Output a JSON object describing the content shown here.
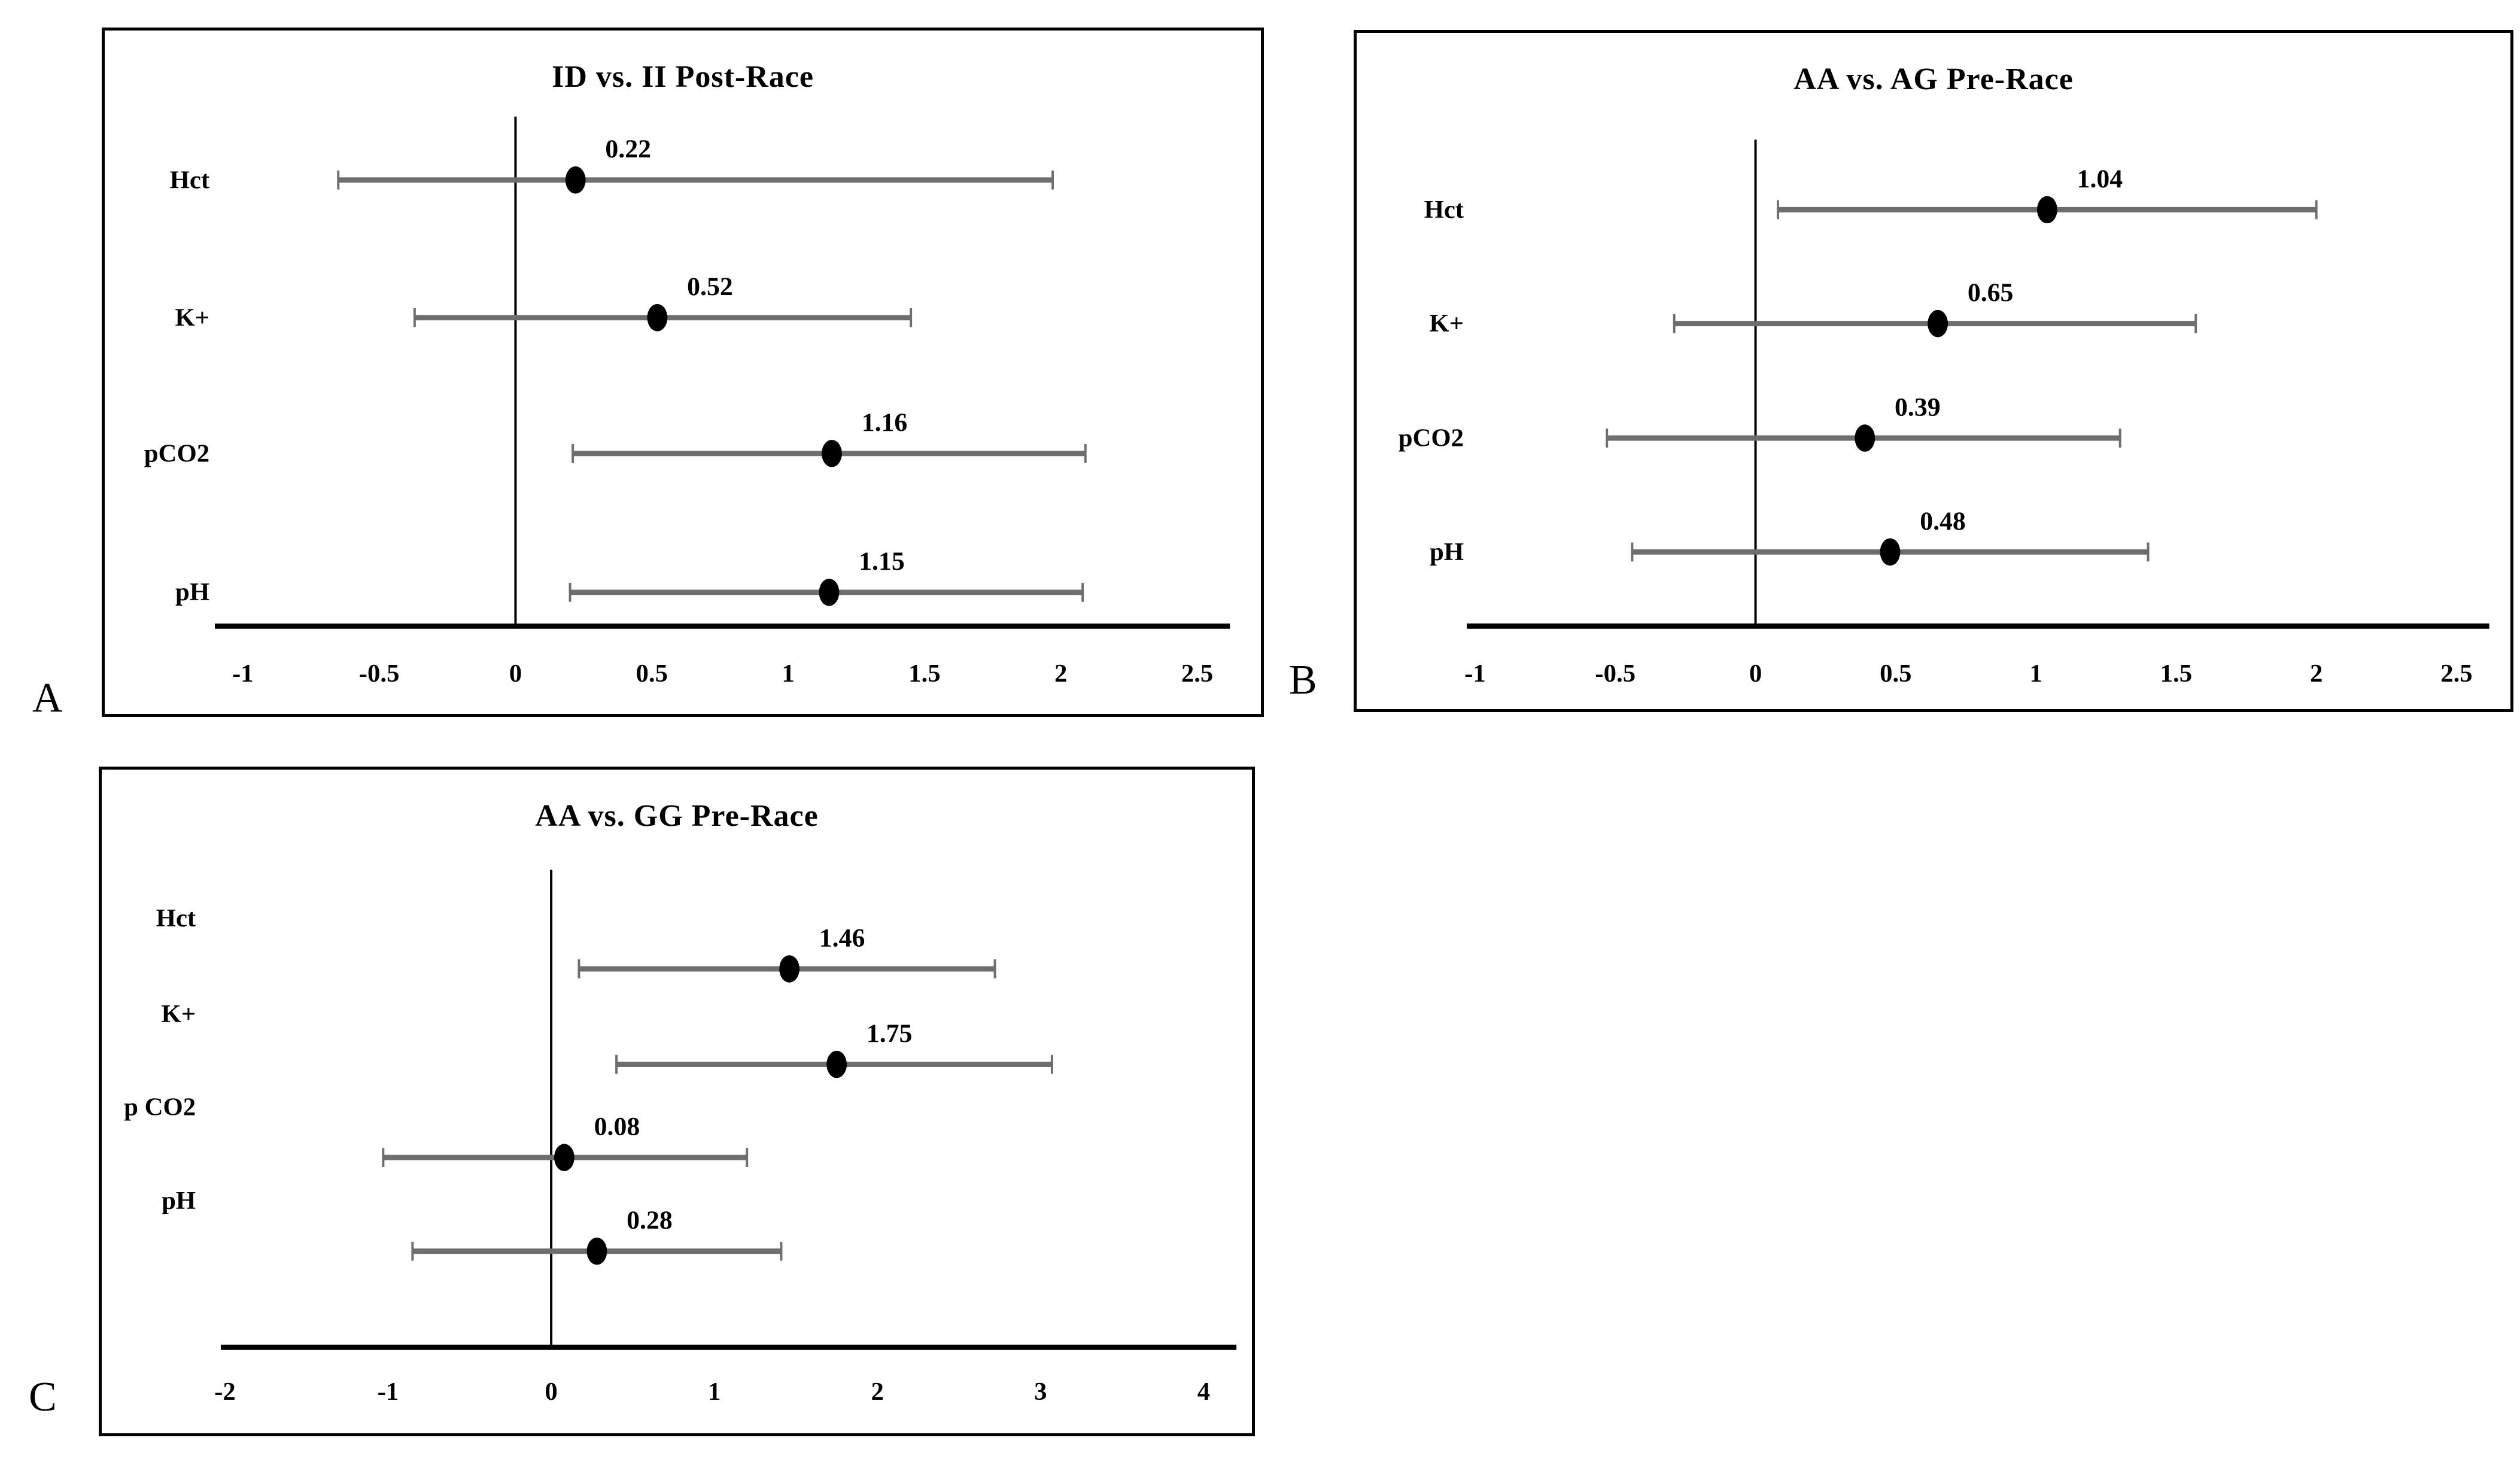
{
  "figure": {
    "background": "#ffffff",
    "style": {
      "bar_color": "#6e6e6e",
      "marker_color": "#000000",
      "axis_color": "#000000",
      "text_color": "#000000",
      "border_color": "#000000"
    }
  },
  "chart_data": [
    {
      "panel_letter": "A",
      "type": "scatter",
      "variant": "forest_plot_error_bars",
      "title": "ID vs. II Post-Race",
      "categories": [
        "Hct",
        "K+",
        "pCO2",
        "pH"
      ],
      "values": [
        0.22,
        0.52,
        1.16,
        1.15
      ],
      "value_labels": [
        "0.22",
        "0.52",
        "1.16",
        "1.15"
      ],
      "ci_low": [
        -0.65,
        -0.37,
        0.21,
        0.2
      ],
      "ci_high": [
        1.97,
        1.45,
        2.09,
        2.08
      ],
      "axis_range": [
        -1,
        2.5
      ],
      "x_ticks": [
        -1,
        -0.5,
        0,
        0.5,
        1,
        1.5,
        2,
        2.5
      ],
      "x_tick_labels": [
        "-1",
        "-0.5",
        "0",
        "0.5",
        "1",
        "1.5",
        "2",
        "2.5"
      ],
      "reference_line_x": 0,
      "grid": false,
      "legend": false
    },
    {
      "panel_letter": "B",
      "type": "scatter",
      "variant": "forest_plot_error_bars",
      "title": "AA vs. AG Pre-Race",
      "categories": [
        "Hct",
        "K+",
        "pCO2",
        "pH"
      ],
      "values": [
        1.04,
        0.65,
        0.39,
        0.48
      ],
      "value_labels": [
        "1.04",
        "0.65",
        "0.39",
        "0.48"
      ],
      "ci_low": [
        0.08,
        -0.29,
        -0.53,
        -0.44
      ],
      "ci_high": [
        2.0,
        1.57,
        1.3,
        1.4
      ],
      "axis_range": [
        -1,
        2.5
      ],
      "x_ticks": [
        -1,
        -0.5,
        0,
        0.5,
        1,
        1.5,
        2,
        2.5
      ],
      "x_tick_labels": [
        "-1",
        "-0.5",
        "0",
        "0.5",
        "1",
        "1.5",
        "2",
        "2.5"
      ],
      "reference_line_x": 0,
      "grid": false,
      "legend": false
    },
    {
      "panel_letter": "C",
      "type": "scatter",
      "variant": "forest_plot_error_bars",
      "title": "AA vs. GG Pre-Race",
      "categories": [
        "Hct",
        "K+",
        "p CO2",
        "pH"
      ],
      "values": [
        1.46,
        1.75,
        0.08,
        0.28
      ],
      "value_labels": [
        "1.46",
        "1.75",
        "0.08",
        "0.28"
      ],
      "ci_low": [
        0.17,
        0.4,
        -1.03,
        -0.85
      ],
      "ci_high": [
        2.72,
        3.07,
        1.2,
        1.41
      ],
      "axis_range": [
        -2,
        4
      ],
      "x_ticks": [
        -2,
        -1,
        0,
        1,
        2,
        3,
        4
      ],
      "x_tick_labels": [
        "-2",
        "-1",
        "0",
        "1",
        "2",
        "3",
        "4"
      ],
      "reference_line_x": 0,
      "grid": false,
      "legend": false
    }
  ]
}
